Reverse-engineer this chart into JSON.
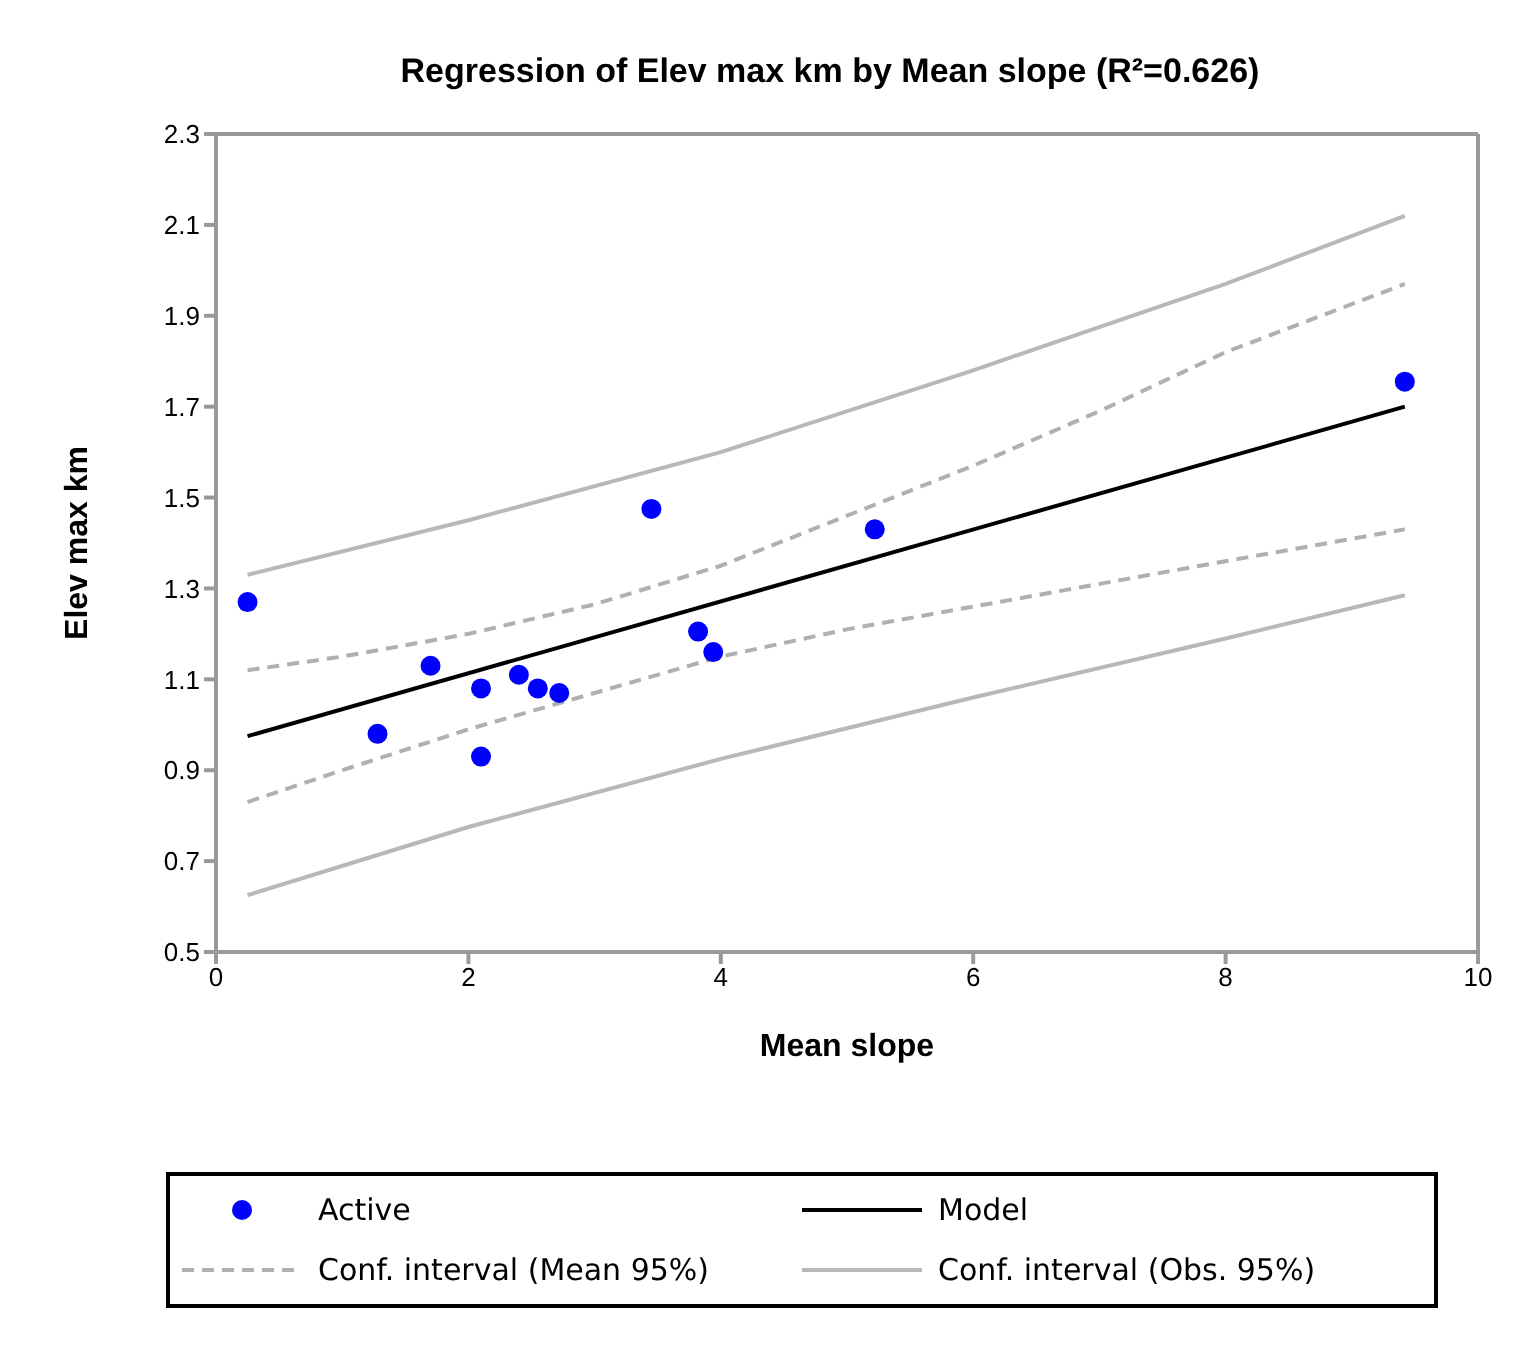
{
  "chart_data": {
    "type": "scatter",
    "title": "Regression of Elev max km by Mean slope (R²=0.626)",
    "xlabel": "Mean slope",
    "ylabel": "Elev max km",
    "xlim": [
      0,
      10
    ],
    "xticks": [
      0,
      2,
      4,
      6,
      8,
      10
    ],
    "ylim": [
      0.5,
      2.3
    ],
    "yticks": [
      0.5,
      0.7,
      0.9,
      1.1,
      1.3,
      1.5,
      1.7,
      1.9,
      2.1,
      2.3
    ],
    "grid": false,
    "legend": "bottom",
    "series": [
      {
        "name": "Active",
        "marker": "circle",
        "color": "#0000ff",
        "x": [
          0.25,
          1.28,
          1.7,
          2.1,
          2.1,
          2.4,
          2.55,
          2.72,
          3.45,
          3.82,
          3.94,
          5.22,
          9.42
        ],
        "values": [
          1.27,
          0.98,
          1.13,
          1.08,
          0.93,
          1.11,
          1.08,
          1.07,
          1.475,
          1.205,
          1.16,
          1.43,
          1.755
        ]
      },
      {
        "name": "Model",
        "type": "line",
        "marker": "none",
        "line_style": "solid",
        "color": "#000000",
        "x": [
          0.25,
          9.42
        ],
        "values": [
          0.975,
          1.7
        ]
      },
      {
        "name": "Conf. interval (Mean 95%)",
        "type": "line",
        "marker": "none",
        "line_style": "dashed",
        "color": "#b0b0b0",
        "x": [
          0.25,
          1,
          2,
          3,
          4,
          5,
          6,
          7,
          8,
          9.42
        ],
        "values": [
          1.12,
          1.15,
          1.2,
          1.265,
          1.35,
          1.46,
          1.57,
          1.69,
          1.82,
          1.97
        ]
      },
      {
        "name": null,
        "type": "line",
        "marker": "none",
        "line_style": "dashed",
        "color": "#b0b0b0",
        "x": [
          0.25,
          1,
          2,
          3,
          4,
          5,
          6,
          7,
          8,
          9.42
        ],
        "values": [
          0.83,
          0.9,
          0.99,
          1.07,
          1.15,
          1.21,
          1.26,
          1.31,
          1.36,
          1.43
        ]
      },
      {
        "name": "Conf. interval (Obs. 95%)",
        "type": "line",
        "marker": "none",
        "line_style": "solid",
        "color": "#b8b8b8",
        "x": [
          0.25,
          2,
          4,
          6,
          8,
          9.42
        ],
        "values": [
          1.33,
          1.45,
          1.6,
          1.78,
          1.97,
          2.12
        ]
      },
      {
        "name": null,
        "type": "line",
        "marker": "none",
        "line_style": "solid",
        "color": "#b8b8b8",
        "x": [
          0.25,
          2,
          4,
          6,
          8,
          9.42
        ],
        "values": [
          0.625,
          0.775,
          0.925,
          1.06,
          1.19,
          1.285
        ]
      }
    ]
  }
}
